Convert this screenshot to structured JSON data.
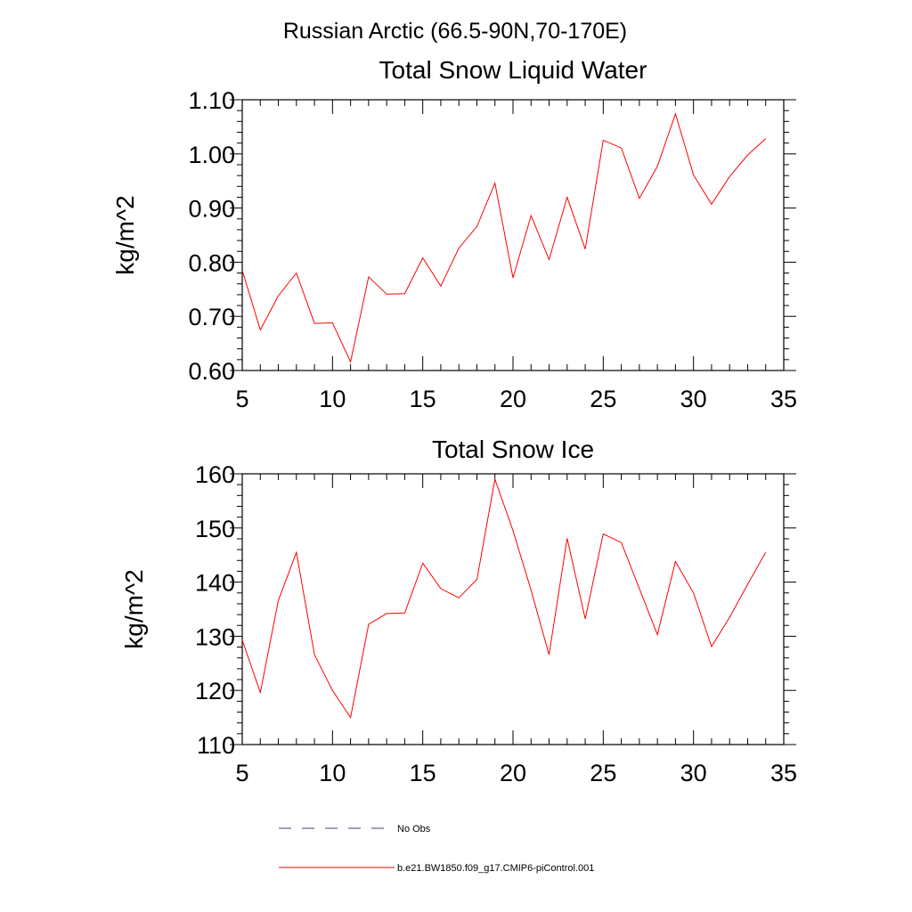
{
  "figure_title": "Russian Arctic (66.5-90N,70-170E)",
  "colors": {
    "model_series": "#ff0000",
    "obs_series": "#404080",
    "axes": "#000000"
  },
  "chart_data": [
    {
      "type": "line",
      "title": "Total Snow Liquid Water",
      "xlabel": "",
      "ylabel": "kg/m^2",
      "xlim": [
        5,
        35
      ],
      "ylim": [
        0.6,
        1.1
      ],
      "x_ticks": [
        5,
        10,
        15,
        20,
        25,
        30,
        35
      ],
      "y_ticks": [
        0.6,
        0.7,
        0.8,
        0.9,
        1.0,
        1.1
      ],
      "y_tick_labels": [
        "0.60",
        "0.70",
        "0.80",
        "0.90",
        "1.00",
        "1.10"
      ],
      "grid": false,
      "series": [
        {
          "name": "b.e21.BW1850.f09_g17.CMIP6-piControl.001",
          "x": [
            5,
            6,
            7,
            8,
            9,
            10,
            11,
            12,
            13,
            14,
            15,
            16,
            17,
            18,
            19,
            20,
            21,
            22,
            23,
            24,
            25,
            26,
            27,
            28,
            29,
            30,
            31,
            32,
            33,
            34
          ],
          "y": [
            0.785,
            0.675,
            0.738,
            0.78,
            0.687,
            0.688,
            0.616,
            0.773,
            0.741,
            0.742,
            0.808,
            0.756,
            0.826,
            0.866,
            0.946,
            0.771,
            0.886,
            0.805,
            0.92,
            0.824,
            1.025,
            1.011,
            0.918,
            0.977,
            1.074,
            0.961,
            0.907,
            0.958,
            0.998,
            1.028
          ]
        }
      ]
    },
    {
      "type": "line",
      "title": "Total Snow Ice",
      "xlabel": "",
      "ylabel": "kg/m^2",
      "xlim": [
        5,
        35
      ],
      "ylim": [
        110,
        160
      ],
      "x_ticks": [
        5,
        10,
        15,
        20,
        25,
        30,
        35
      ],
      "y_ticks": [
        110,
        120,
        130,
        140,
        150,
        160
      ],
      "y_tick_labels": [
        "110",
        "120",
        "130",
        "140",
        "150",
        "160"
      ],
      "grid": false,
      "series": [
        {
          "name": "b.e21.BW1850.f09_g17.CMIP6-piControl.001",
          "x": [
            5,
            6,
            7,
            8,
            9,
            10,
            11,
            12,
            13,
            14,
            15,
            16,
            17,
            18,
            19,
            20,
            21,
            22,
            23,
            24,
            25,
            26,
            27,
            28,
            29,
            30,
            31,
            32,
            33,
            34
          ],
          "y": [
            129.3,
            119.6,
            136.6,
            145.5,
            126.6,
            120.0,
            115.0,
            132.2,
            134.2,
            134.3,
            143.5,
            138.8,
            137.1,
            140.5,
            159.0,
            149.5,
            138.5,
            126.6,
            148.1,
            133.2,
            148.9,
            147.3,
            138.8,
            130.3,
            143.8,
            138.0,
            128.1,
            133.5,
            139.6,
            145.5
          ]
        }
      ]
    }
  ],
  "legend": {
    "placement": "bottom-left",
    "entries": [
      {
        "label": "No Obs",
        "style": "dashed"
      },
      {
        "label": "b.e21.BW1850.f09_g17.CMIP6-piControl.001",
        "style": "solid"
      }
    ]
  }
}
